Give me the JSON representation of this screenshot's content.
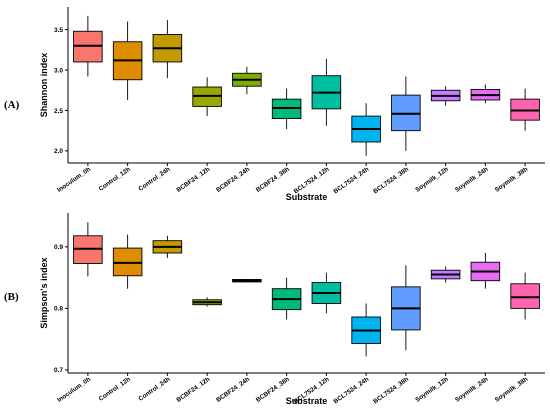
{
  "chart_data": [
    {
      "type": "box",
      "panel_label": "(A)",
      "xlabel": "Substrate",
      "ylabel": "Shannon index",
      "ylim": [
        1.85,
        3.78
      ],
      "yticks": [
        2.0,
        2.5,
        3.0,
        3.5
      ],
      "ytick_labels": [
        "2.0",
        "2.5",
        "3.0",
        "3.5"
      ],
      "categories": [
        "Inoculum_0h",
        "Control_12h",
        "Control_24h",
        "BCBF24_12h",
        "BCBF24_24h",
        "BCBF24_38h",
        "BCL7524_12h",
        "BCL7524_24h",
        "BCL7524_38h",
        "Soymilk_12h",
        "Soymilk_24h",
        "Soymilk_38h"
      ],
      "colors": [
        "#F8766D",
        "#DE8C00",
        "#C49A00",
        "#99A800",
        "#7CAE00",
        "#00B97A",
        "#00BFA0",
        "#00B4F0",
        "#619CFF",
        "#C77CFF",
        "#E76BF3",
        "#FF64B0"
      ],
      "boxes": [
        {
          "min": 2.92,
          "q1": 3.1,
          "median": 3.3,
          "q3": 3.48,
          "max": 3.67
        },
        {
          "min": 2.63,
          "q1": 2.88,
          "median": 3.12,
          "q3": 3.35,
          "max": 3.6
        },
        {
          "min": 2.9,
          "q1": 3.1,
          "median": 3.27,
          "q3": 3.44,
          "max": 3.62
        },
        {
          "min": 2.43,
          "q1": 2.55,
          "median": 2.68,
          "q3": 2.79,
          "max": 2.91
        },
        {
          "min": 2.7,
          "q1": 2.8,
          "median": 2.88,
          "q3": 2.96,
          "max": 3.04
        },
        {
          "min": 2.27,
          "q1": 2.4,
          "median": 2.53,
          "q3": 2.64,
          "max": 2.77
        },
        {
          "min": 2.31,
          "q1": 2.52,
          "median": 2.72,
          "q3": 2.93,
          "max": 3.14
        },
        {
          "min": 1.94,
          "q1": 2.11,
          "median": 2.27,
          "q3": 2.43,
          "max": 2.59
        },
        {
          "min": 2.0,
          "q1": 2.25,
          "median": 2.46,
          "q3": 2.69,
          "max": 2.92
        },
        {
          "min": 2.56,
          "q1": 2.62,
          "median": 2.68,
          "q3": 2.75,
          "max": 2.8
        },
        {
          "min": 2.59,
          "q1": 2.63,
          "median": 2.69,
          "q3": 2.76,
          "max": 2.82
        },
        {
          "min": 2.25,
          "q1": 2.38,
          "median": 2.5,
          "q3": 2.64,
          "max": 2.77
        }
      ]
    },
    {
      "type": "box",
      "panel_label": "(B)",
      "xlabel": "Substrate",
      "ylabel": "Simpson's index",
      "ylim": [
        0.695,
        0.955
      ],
      "yticks": [
        0.7,
        0.8,
        0.9
      ],
      "ytick_labels": [
        "0.7",
        "0.8",
        "0.9"
      ],
      "categories": [
        "Inoculum_0h",
        "Control_12h",
        "Control_24h",
        "BCBF24_12h",
        "BCBF24_24h",
        "BCBF24_38h",
        "BCL7524_12h",
        "BCL7524_24h",
        "BCL7524_38h",
        "Soymilk_12h",
        "Soymilk_24h",
        "Soymilk_38h"
      ],
      "colors": [
        "#F8766D",
        "#DE8C00",
        "#C49A00",
        "#99A800",
        "#7CAE00",
        "#00B97A",
        "#00BFA0",
        "#00B4F0",
        "#619CFF",
        "#C77CFF",
        "#E76BF3",
        "#FF64B0"
      ],
      "boxes": [
        {
          "min": 0.852,
          "q1": 0.873,
          "median": 0.897,
          "q3": 0.918,
          "max": 0.94
        },
        {
          "min": 0.832,
          "q1": 0.853,
          "median": 0.874,
          "q3": 0.898,
          "max": 0.92
        },
        {
          "min": 0.882,
          "q1": 0.89,
          "median": 0.9,
          "q3": 0.91,
          "max": 0.918
        },
        {
          "min": 0.803,
          "q1": 0.806,
          "median": 0.81,
          "q3": 0.814,
          "max": 0.818
        },
        {
          "min": 0.842,
          "q1": 0.843,
          "median": 0.845,
          "q3": 0.847,
          "max": 0.848
        },
        {
          "min": 0.782,
          "q1": 0.798,
          "median": 0.815,
          "q3": 0.832,
          "max": 0.85
        },
        {
          "min": 0.792,
          "q1": 0.808,
          "median": 0.825,
          "q3": 0.842,
          "max": 0.858
        },
        {
          "min": 0.722,
          "q1": 0.743,
          "median": 0.764,
          "q3": 0.786,
          "max": 0.808
        },
        {
          "min": 0.732,
          "q1": 0.765,
          "median": 0.8,
          "q3": 0.835,
          "max": 0.87
        },
        {
          "min": 0.842,
          "q1": 0.848,
          "median": 0.855,
          "q3": 0.862,
          "max": 0.868
        },
        {
          "min": 0.832,
          "q1": 0.845,
          "median": 0.86,
          "q3": 0.875,
          "max": 0.89
        },
        {
          "min": 0.782,
          "q1": 0.8,
          "median": 0.818,
          "q3": 0.84,
          "max": 0.858
        }
      ]
    }
  ]
}
